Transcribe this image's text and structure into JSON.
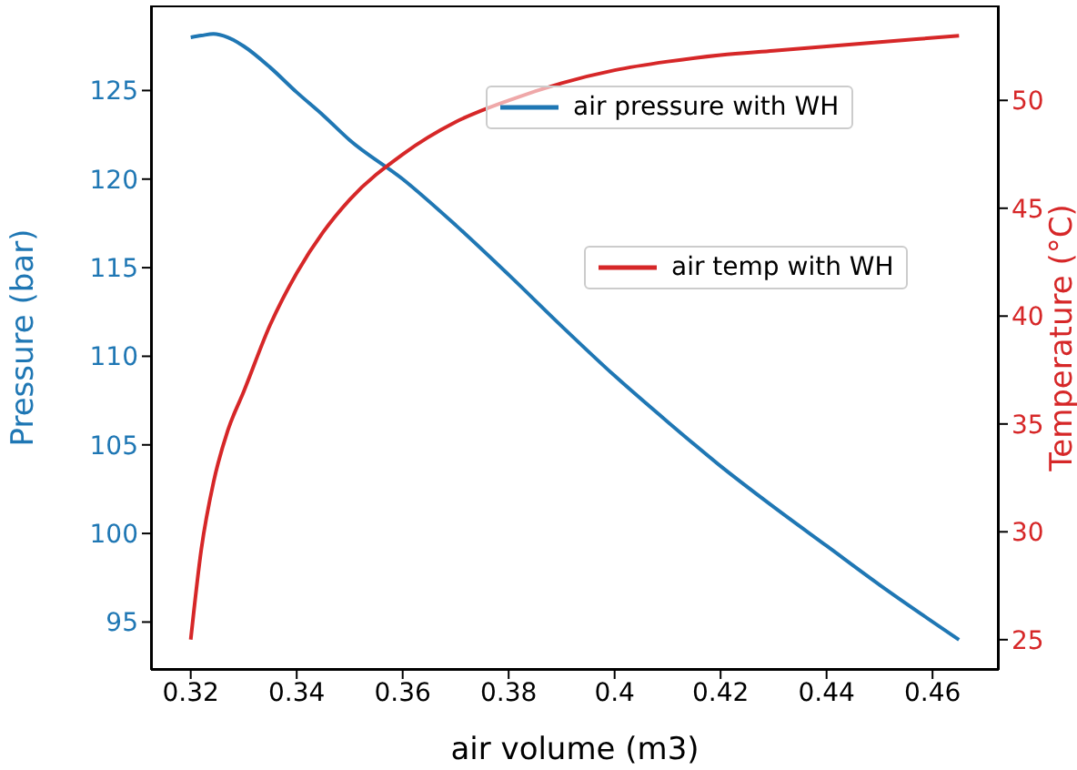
{
  "chart_data": {
    "type": "line",
    "xlabel": "air volume (m3)",
    "ylabel": "Pressure (bar)",
    "y2label": "Temperature (°C)",
    "x": [
      0.32,
      0.322,
      0.3243,
      0.327,
      0.33,
      0.335,
      0.34,
      0.345,
      0.35,
      0.36,
      0.37,
      0.38,
      0.39,
      0.4,
      0.41,
      0.42,
      0.43,
      0.44,
      0.45,
      0.465
    ],
    "series": [
      {
        "name": "air pressure with WH",
        "color": "#1f77b4",
        "values": [
          128,
          128.1,
          128.2,
          128,
          127.5,
          126.3,
          124.9,
          123.6,
          122.2,
          120,
          117.4,
          114.6,
          111.7,
          108.9,
          106.3,
          103.8,
          101.5,
          99.3,
          97.1,
          94
        ]
      },
      {
        "name": "air temp with WH",
        "color": "#d62728",
        "axis": "y2",
        "values": [
          25,
          29.2,
          32.3,
          34.7,
          36.5,
          39.6,
          42,
          43.9,
          45.4,
          47.5,
          49,
          50,
          50.8,
          51.4,
          51.8,
          52.1,
          52.3,
          52.5,
          52.7,
          53
        ]
      }
    ],
    "xlim": [
      0.3125,
      0.4725
    ],
    "xticks": [
      0.32,
      0.34,
      0.36,
      0.38,
      0.4,
      0.42,
      0.44,
      0.46
    ],
    "ylim": [
      92.3,
      129.8
    ],
    "yticks": [
      95,
      100,
      105,
      110,
      115,
      120,
      125
    ],
    "y2lim": [
      23.6,
      54.4
    ],
    "y2ticks": [
      25,
      30,
      35,
      40,
      45,
      50
    ],
    "grid": false,
    "legend": "right",
    "marker": "none",
    "line_style": "solid"
  }
}
